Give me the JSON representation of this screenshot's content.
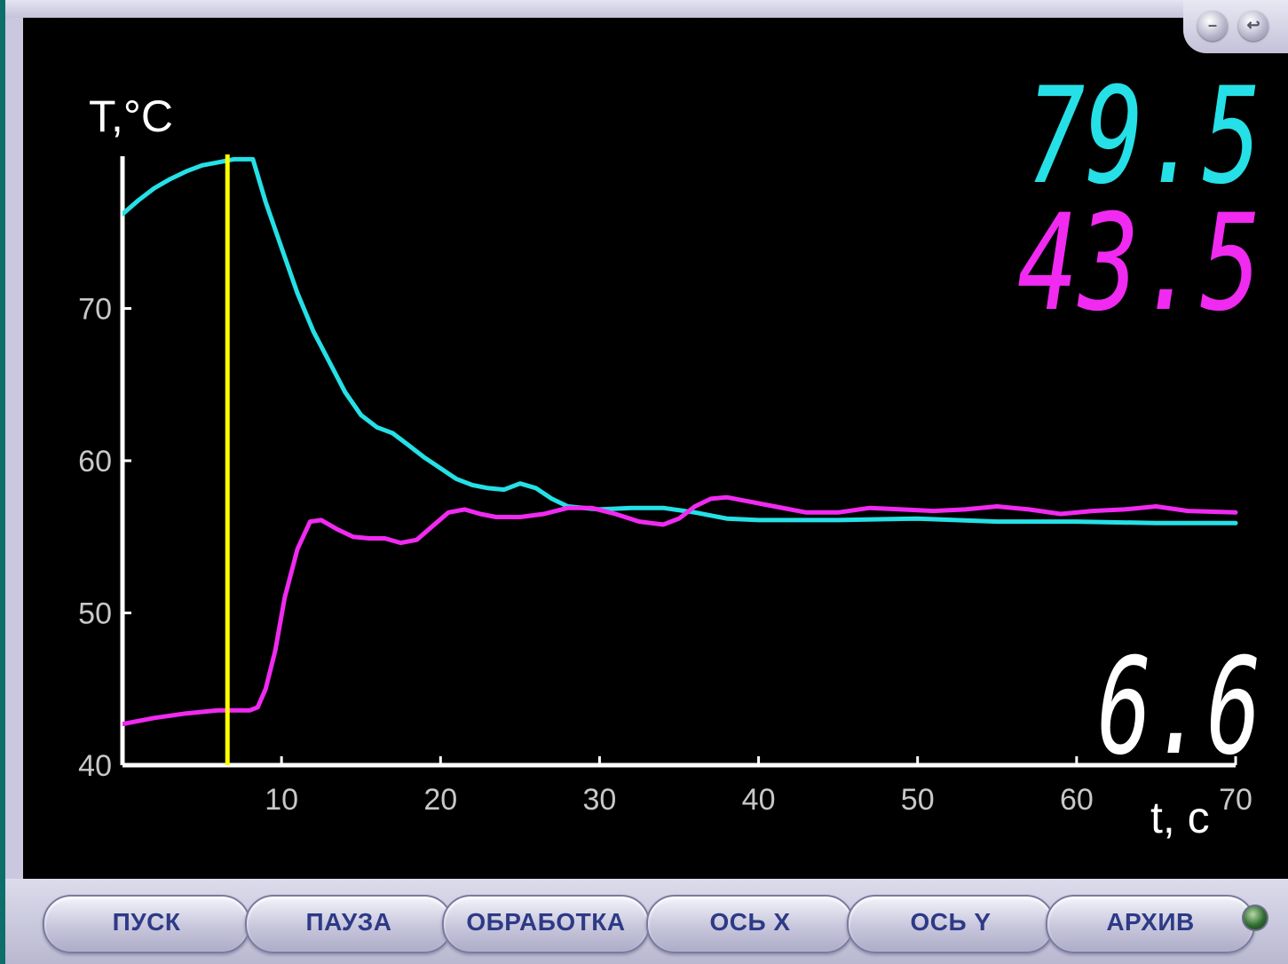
{
  "window_buttons": {
    "minimize_glyph": "–",
    "restore_glyph": "↩"
  },
  "readouts": {
    "t1": "79.5",
    "t2": "43.5",
    "time": "6.6"
  },
  "colors": {
    "series1": "#25e0e6",
    "series2": "#f02af0",
    "cursor": "#ffff00",
    "axis": "#ffffff",
    "time_readout": "#ffffff"
  },
  "toolbar": {
    "buttons": [
      {
        "label": "ПУСК"
      },
      {
        "label": "ПАУЗА"
      },
      {
        "label": "ОБРАБОТКА"
      },
      {
        "label": "ОСЬ X"
      },
      {
        "label": "ОСЬ Y"
      },
      {
        "label": "АРХИВ"
      }
    ]
  },
  "chart_data": {
    "type": "line",
    "title": "",
    "xlabel": "t, c",
    "ylabel": "T,°C",
    "xlim": [
      0,
      70
    ],
    "ylim": [
      40,
      80
    ],
    "x_ticks": [
      "10",
      "20",
      "30",
      "40",
      "50",
      "60",
      "70"
    ],
    "y_ticks": [
      "40",
      "50",
      "60",
      "70"
    ],
    "grid": false,
    "legend": "none",
    "cursor_x": 6.6,
    "series": [
      {
        "color": "#25e0e6",
        "points": [
          [
            0,
            76.2
          ],
          [
            1,
            77.1
          ],
          [
            2,
            77.9
          ],
          [
            3,
            78.5
          ],
          [
            4,
            79.0
          ],
          [
            5,
            79.4
          ],
          [
            6,
            79.6
          ],
          [
            7,
            79.8
          ],
          [
            8.2,
            79.8
          ],
          [
            9,
            77.0
          ],
          [
            10,
            74.0
          ],
          [
            11,
            71.0
          ],
          [
            12,
            68.5
          ],
          [
            13,
            66.5
          ],
          [
            14,
            64.5
          ],
          [
            15,
            63.0
          ],
          [
            16,
            62.2
          ],
          [
            17,
            61.8
          ],
          [
            18,
            61.0
          ],
          [
            19,
            60.2
          ],
          [
            20,
            59.5
          ],
          [
            21,
            58.8
          ],
          [
            22,
            58.4
          ],
          [
            23,
            58.2
          ],
          [
            24,
            58.1
          ],
          [
            25,
            58.5
          ],
          [
            26,
            58.2
          ],
          [
            27,
            57.5
          ],
          [
            28,
            57.0
          ],
          [
            29,
            56.9
          ],
          [
            30,
            56.8
          ],
          [
            32,
            56.9
          ],
          [
            34,
            56.9
          ],
          [
            36,
            56.6
          ],
          [
            38,
            56.2
          ],
          [
            40,
            56.1
          ],
          [
            45,
            56.1
          ],
          [
            50,
            56.2
          ],
          [
            55,
            56.0
          ],
          [
            60,
            56.0
          ],
          [
            65,
            55.9
          ],
          [
            70,
            55.9
          ]
        ]
      },
      {
        "color": "#f02af0",
        "points": [
          [
            0,
            42.7
          ],
          [
            2,
            43.1
          ],
          [
            4,
            43.4
          ],
          [
            6,
            43.6
          ],
          [
            8,
            43.6
          ],
          [
            8.5,
            43.8
          ],
          [
            9,
            45.0
          ],
          [
            9.6,
            47.5
          ],
          [
            10.2,
            51.0
          ],
          [
            11,
            54.2
          ],
          [
            11.8,
            56.0
          ],
          [
            12.5,
            56.1
          ],
          [
            13.5,
            55.5
          ],
          [
            14.5,
            55.0
          ],
          [
            15.5,
            54.9
          ],
          [
            16.5,
            54.9
          ],
          [
            17.5,
            54.6
          ],
          [
            18.5,
            54.8
          ],
          [
            19.5,
            55.7
          ],
          [
            20.5,
            56.6
          ],
          [
            21.5,
            56.8
          ],
          [
            22.5,
            56.5
          ],
          [
            23.5,
            56.3
          ],
          [
            25,
            56.3
          ],
          [
            26.5,
            56.5
          ],
          [
            28,
            56.9
          ],
          [
            29.5,
            56.9
          ],
          [
            31,
            56.5
          ],
          [
            32.5,
            56.0
          ],
          [
            34,
            55.8
          ],
          [
            35,
            56.2
          ],
          [
            36,
            57.0
          ],
          [
            37,
            57.5
          ],
          [
            38,
            57.6
          ],
          [
            39.5,
            57.3
          ],
          [
            41,
            57.0
          ],
          [
            43,
            56.6
          ],
          [
            45,
            56.6
          ],
          [
            47,
            56.9
          ],
          [
            49,
            56.8
          ],
          [
            51,
            56.7
          ],
          [
            53,
            56.8
          ],
          [
            55,
            57.0
          ],
          [
            57,
            56.8
          ],
          [
            59,
            56.5
          ],
          [
            61,
            56.7
          ],
          [
            63,
            56.8
          ],
          [
            65,
            57.0
          ],
          [
            67,
            56.7
          ],
          [
            70,
            56.6
          ]
        ]
      }
    ]
  }
}
